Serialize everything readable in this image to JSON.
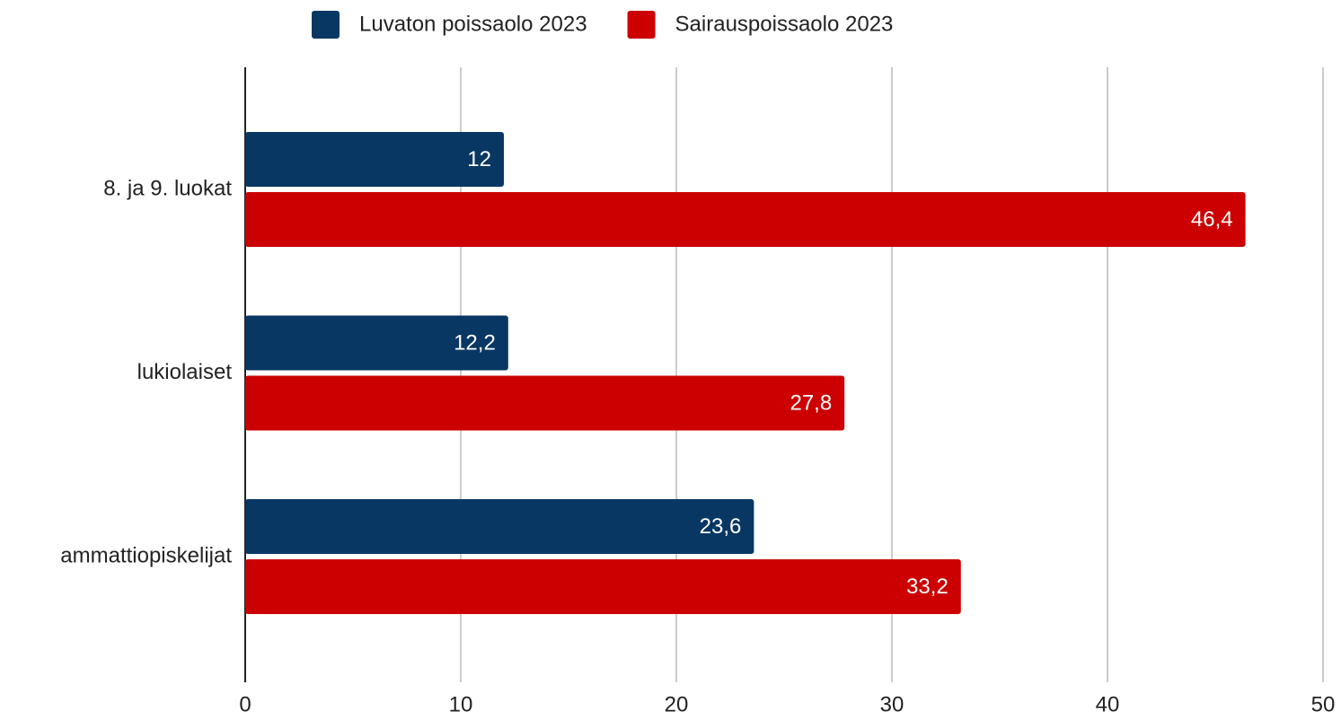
{
  "chart_data": {
    "type": "hbar",
    "categories": [
      "8. ja 9. luokat",
      "lukiolaiset",
      "ammattiopiskelijat"
    ],
    "series": [
      {
        "name": "Luvaton poissaolo 2023",
        "color": "#083763",
        "values": [
          12,
          12.2,
          23.6
        ],
        "value_labels": [
          "12",
          "12,2",
          "23,6"
        ]
      },
      {
        "name": "Sairauspoissaolo 2023",
        "color": "#cc0000",
        "values": [
          46.4,
          27.8,
          33.2
        ],
        "value_labels": [
          "46,4",
          "27,8",
          "33,2"
        ]
      }
    ],
    "xlim": [
      0,
      50
    ],
    "xticks": [
      0,
      10,
      20,
      30,
      40,
      50
    ],
    "grid": true,
    "legend": "top"
  }
}
